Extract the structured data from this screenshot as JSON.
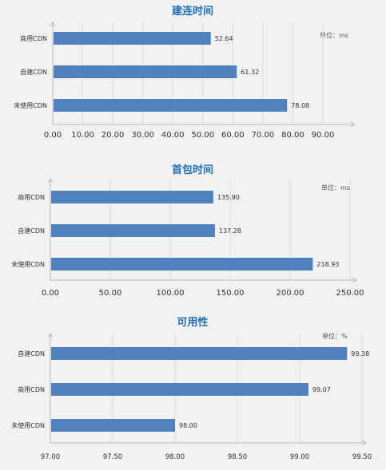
{
  "colors": {
    "bar": "#4f81bd",
    "title": "#1f6fb3",
    "panel": "#f2f2f2"
  },
  "chart_data": [
    {
      "type": "bar",
      "orientation": "horizontal",
      "title": "建连时间",
      "unit_label": "单位：ms",
      "categories": [
        "商用CDN",
        "自建CDN",
        "未使用CDN"
      ],
      "values": [
        52.64,
        61.32,
        78.08
      ],
      "value_labels": [
        "52.64",
        "61.32",
        "78.08"
      ],
      "xlim": [
        0,
        90
      ],
      "xticks": [
        "0.00",
        "10.00",
        "20.00",
        "30.00",
        "40.00",
        "50.00",
        "60.00",
        "70.00",
        "80.00",
        "90.00"
      ],
      "grid": true
    },
    {
      "type": "bar",
      "orientation": "horizontal",
      "title": "首包时间",
      "unit_label": "单位：ms",
      "categories": [
        "商用CDN",
        "自建CDN",
        "未使用CDN"
      ],
      "values": [
        135.9,
        137.28,
        218.93
      ],
      "value_labels": [
        "135.90",
        "137.28",
        "218.93"
      ],
      "xlim": [
        0,
        250
      ],
      "xticks": [
        "0.00",
        "50.00",
        "100.00",
        "150.00",
        "200.00",
        "250.00"
      ],
      "grid": true
    },
    {
      "type": "bar",
      "orientation": "horizontal",
      "title": "可用性",
      "unit_label": "单位：%",
      "categories": [
        "自建CDN",
        "商用CDN",
        "未使用CDN"
      ],
      "values": [
        99.38,
        99.07,
        98.0
      ],
      "value_labels": [
        "99.38",
        "99.07",
        "98.00"
      ],
      "xlim": [
        97,
        99.5
      ],
      "xticks": [
        "97.00",
        "97.50",
        "98.00",
        "98.50",
        "99.00",
        "99.50"
      ],
      "grid": true
    }
  ]
}
